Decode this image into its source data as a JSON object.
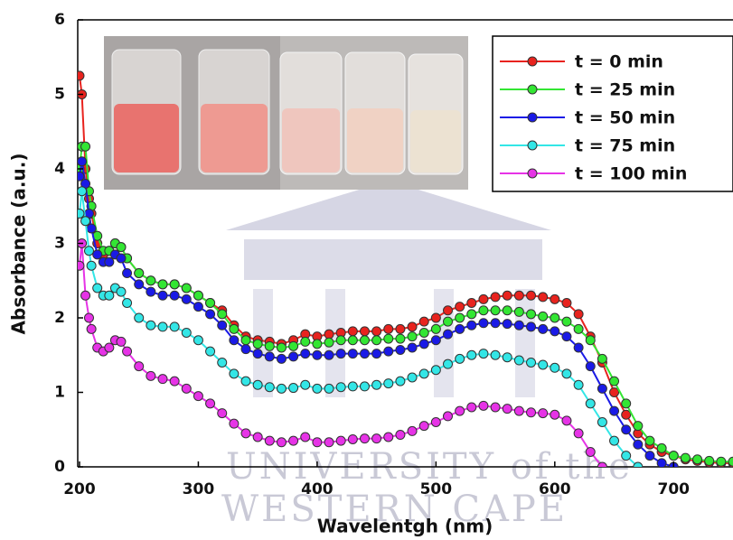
{
  "chart_data": {
    "type": "line",
    "xlabel": "Wavelentgh (nm)",
    "ylabel": "Absorbance (a.u.)",
    "watermark": [
      "UNIVERSITY of the",
      "WESTERN CAPE"
    ],
    "x": [
      200,
      202,
      205,
      208,
      210,
      215,
      220,
      225,
      230,
      235,
      240,
      250,
      260,
      270,
      280,
      290,
      300,
      310,
      320,
      330,
      340,
      350,
      360,
      370,
      380,
      390,
      400,
      410,
      420,
      430,
      440,
      450,
      460,
      470,
      480,
      490,
      500,
      510,
      520,
      530,
      540,
      550,
      560,
      570,
      580,
      590,
      600,
      610,
      620,
      630,
      640,
      650,
      660,
      670,
      680,
      690,
      700,
      710,
      720,
      730,
      740,
      750
    ],
    "series": [
      {
        "name": "t = 0 min",
        "color": "#e8231e",
        "values": [
          5.25,
          5.0,
          4.0,
          3.6,
          3.4,
          3.0,
          2.85,
          2.9,
          3.0,
          2.95,
          2.8,
          2.6,
          2.5,
          2.45,
          2.45,
          2.4,
          2.3,
          2.2,
          2.1,
          1.9,
          1.75,
          1.7,
          1.68,
          1.65,
          1.7,
          1.78,
          1.75,
          1.78,
          1.8,
          1.82,
          1.82,
          1.82,
          1.85,
          1.85,
          1.88,
          1.95,
          2.0,
          2.1,
          2.15,
          2.2,
          2.25,
          2.28,
          2.3,
          2.3,
          2.3,
          2.28,
          2.25,
          2.2,
          2.05,
          1.75,
          1.4,
          1.0,
          0.7,
          0.45,
          0.3,
          0.2,
          0.15,
          0.1,
          0.08,
          0.06,
          0.05,
          0.05
        ]
      },
      {
        "name": "t = 25 min",
        "color": "#33e633",
        "values": [
          4.0,
          4.3,
          4.3,
          3.7,
          3.5,
          3.1,
          2.9,
          2.9,
          3.0,
          2.95,
          2.8,
          2.6,
          2.5,
          2.45,
          2.45,
          2.4,
          2.3,
          2.2,
          2.05,
          1.85,
          1.7,
          1.65,
          1.62,
          1.6,
          1.62,
          1.68,
          1.65,
          1.67,
          1.7,
          1.7,
          1.7,
          1.7,
          1.72,
          1.72,
          1.75,
          1.8,
          1.85,
          1.95,
          2.0,
          2.05,
          2.1,
          2.1,
          2.1,
          2.08,
          2.05,
          2.02,
          2.0,
          1.95,
          1.85,
          1.7,
          1.45,
          1.15,
          0.85,
          0.55,
          0.35,
          0.25,
          0.15,
          0.12,
          0.1,
          0.08,
          0.07,
          0.07
        ]
      },
      {
        "name": "t = 50 min",
        "color": "#1a1ae6",
        "values": [
          3.9,
          4.1,
          3.8,
          3.4,
          3.2,
          2.85,
          2.75,
          2.75,
          2.85,
          2.8,
          2.6,
          2.45,
          2.35,
          2.3,
          2.3,
          2.25,
          2.15,
          2.05,
          1.9,
          1.7,
          1.58,
          1.52,
          1.48,
          1.45,
          1.48,
          1.52,
          1.5,
          1.5,
          1.52,
          1.52,
          1.52,
          1.52,
          1.55,
          1.57,
          1.6,
          1.65,
          1.7,
          1.78,
          1.85,
          1.9,
          1.93,
          1.93,
          1.92,
          1.9,
          1.88,
          1.85,
          1.82,
          1.75,
          1.6,
          1.35,
          1.05,
          0.75,
          0.5,
          0.3,
          0.15,
          0.05,
          0,
          null,
          null,
          null,
          null,
          null
        ]
      },
      {
        "name": "t = 75 min",
        "color": "#33e6e6",
        "values": [
          3.4,
          3.7,
          3.3,
          2.9,
          2.7,
          2.4,
          2.3,
          2.3,
          2.4,
          2.35,
          2.2,
          2.0,
          1.9,
          1.88,
          1.88,
          1.8,
          1.7,
          1.55,
          1.4,
          1.25,
          1.15,
          1.1,
          1.07,
          1.05,
          1.06,
          1.1,
          1.05,
          1.05,
          1.07,
          1.08,
          1.08,
          1.1,
          1.12,
          1.15,
          1.2,
          1.25,
          1.3,
          1.38,
          1.45,
          1.5,
          1.52,
          1.5,
          1.47,
          1.43,
          1.4,
          1.37,
          1.33,
          1.25,
          1.1,
          0.85,
          0.6,
          0.35,
          0.15,
          0,
          null,
          null,
          null,
          null,
          null,
          null,
          null,
          null
        ]
      },
      {
        "name": "t = 100 min",
        "color": "#e633e6",
        "values": [
          2.7,
          3.0,
          2.3,
          2.0,
          1.85,
          1.6,
          1.55,
          1.6,
          1.7,
          1.68,
          1.55,
          1.35,
          1.22,
          1.18,
          1.15,
          1.05,
          0.95,
          0.85,
          0.72,
          0.58,
          0.45,
          0.4,
          0.35,
          0.33,
          0.35,
          0.4,
          0.33,
          0.33,
          0.35,
          0.37,
          0.38,
          0.38,
          0.4,
          0.43,
          0.48,
          0.55,
          0.6,
          0.68,
          0.75,
          0.8,
          0.82,
          0.8,
          0.78,
          0.75,
          0.73,
          0.72,
          0.7,
          0.62,
          0.45,
          0.2,
          0,
          null,
          null,
          null,
          null,
          null,
          null,
          null,
          null,
          null,
          null,
          null
        ]
      }
    ],
    "xlim": [
      198.5,
      750
    ],
    "xticks": [
      200,
      300,
      400,
      500,
      600,
      700
    ],
    "ylim": [
      0,
      6
    ],
    "yticks": [
      0,
      1,
      2,
      3,
      4,
      5,
      6
    ],
    "legend": "top-right"
  }
}
